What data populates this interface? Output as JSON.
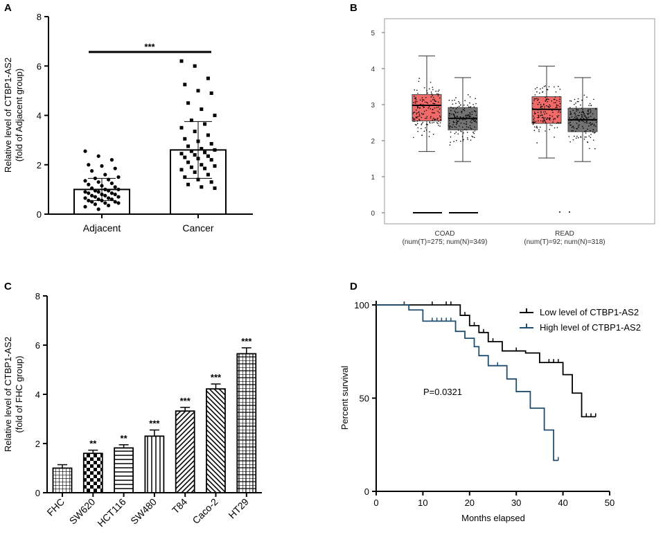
{
  "colors": {
    "tumor": "#f06a6a",
    "normal": "#737373",
    "low": "#000000",
    "high": "#1f4e6e"
  },
  "chart_data": [
    {
      "panel": "A",
      "type": "bar",
      "ylabel": [
        "Relative level of CTBP1-AS2",
        "(fold of  Adjacent group)"
      ],
      "ylim": [
        0,
        8
      ],
      "yticks": [
        0,
        2,
        4,
        6,
        8
      ],
      "categories": [
        "Adjacent",
        "Cancer"
      ],
      "values": [
        1.0,
        2.6
      ],
      "errors": [
        0.45,
        1.15
      ],
      "significance": "***",
      "points": [
        [
          2.55,
          2.35,
          2.2,
          2.0,
          1.95,
          1.85,
          1.75,
          1.6,
          1.5,
          1.45,
          1.4,
          1.35,
          1.3,
          1.25,
          1.2,
          1.15,
          1.1,
          1.05,
          1.0,
          1.0,
          0.95,
          0.95,
          0.9,
          0.9,
          0.85,
          0.85,
          0.8,
          0.8,
          0.75,
          0.75,
          0.7,
          0.7,
          0.65,
          0.65,
          0.6,
          0.6,
          0.55,
          0.55,
          0.5,
          0.5,
          0.45,
          0.45,
          0.4,
          0.35,
          0.3,
          0.2
        ],
        [
          6.2,
          6.0,
          5.5,
          5.25,
          5.0,
          4.9,
          4.5,
          4.25,
          4.0,
          3.8,
          3.65,
          3.5,
          3.35,
          3.2,
          3.05,
          2.95,
          2.85,
          2.75,
          2.65,
          2.6,
          2.55,
          2.5,
          2.45,
          2.4,
          2.35,
          2.3,
          2.25,
          2.2,
          2.1,
          2.0,
          1.95,
          1.9,
          1.85,
          1.8,
          1.7,
          1.6,
          1.5,
          1.4,
          1.3,
          1.2,
          1.1,
          1.05
        ]
      ]
    },
    {
      "panel": "B",
      "type": "box",
      "ylim": [
        0,
        5
      ],
      "yticks": [
        0,
        1,
        2,
        3,
        4,
        5
      ],
      "groups": [
        {
          "label": "COAD",
          "sublabel": "(num(T)=275; num(N)=349)",
          "tumor": {
            "min": 1.7,
            "q1": 2.55,
            "median": 2.98,
            "q3": 3.28,
            "max": 4.35
          },
          "normal": {
            "min": 1.42,
            "q1": 2.3,
            "median": 2.62,
            "q3": 2.92,
            "max": 3.75
          }
        },
        {
          "label": "READ",
          "sublabel": "(num(T)=92; num(N)=318)",
          "tumor": {
            "min": 1.52,
            "q1": 2.48,
            "median": 2.87,
            "q3": 3.22,
            "max": 4.07
          },
          "normal": {
            "min": 1.42,
            "q1": 2.25,
            "median": 2.58,
            "q3": 2.9,
            "max": 3.75
          }
        }
      ]
    },
    {
      "panel": "C",
      "type": "bar",
      "ylabel": [
        "Relative level of CTBP1-AS2",
        "(fold of  FHC group)"
      ],
      "ylim": [
        0,
        8
      ],
      "yticks": [
        0,
        2,
        4,
        6,
        8
      ],
      "categories": [
        "FHC",
        "SW620",
        "HCT116",
        "SW480",
        "T84",
        "Caco-2",
        "HT29"
      ],
      "values": [
        1.0,
        1.6,
        1.82,
        2.3,
        3.32,
        4.22,
        5.65
      ],
      "errors": [
        0.14,
        0.13,
        0.13,
        0.25,
        0.15,
        0.2,
        0.24
      ],
      "significance": [
        "",
        "**",
        "**",
        "***",
        "***",
        "***",
        "***"
      ]
    },
    {
      "panel": "D",
      "type": "line",
      "xlabel": "Months elapsed",
      "ylabel": "Percent survival",
      "xlim": [
        0,
        50
      ],
      "ylim": [
        0,
        100
      ],
      "xticks": [
        0,
        10,
        20,
        30,
        40,
        50
      ],
      "yticks": [
        0,
        50,
        100
      ],
      "annotation": "P=0.0321",
      "series": [
        {
          "name": "Low level of CTBP1-AS2",
          "x": [
            0,
            17,
            18,
            20,
            22,
            24,
            27,
            32,
            35,
            40,
            42,
            44,
            47
          ],
          "y": [
            100,
            100,
            94.4,
            88.9,
            85.2,
            80.3,
            75.3,
            74.2,
            69.1,
            62.6,
            52.7,
            40.0,
            40.0
          ],
          "censored": [
            [
              6,
              100
            ],
            [
              12,
              100
            ],
            [
              15,
              100
            ],
            [
              16,
              100
            ],
            [
              19,
              94.4
            ],
            [
              21,
              88.9
            ],
            [
              23,
              85.2
            ],
            [
              25,
              80.3
            ],
            [
              30,
              75.3
            ],
            [
              37,
              69.1
            ],
            [
              38,
              69.1
            ],
            [
              39,
              69.1
            ],
            [
              45,
              40
            ],
            [
              46,
              40
            ],
            [
              47,
              40
            ]
          ]
        },
        {
          "name": "High level of CTBP1-AS2",
          "x": [
            0,
            7,
            10,
            17,
            19,
            21,
            22,
            24,
            28,
            30,
            33,
            36,
            38,
            39
          ],
          "y": [
            100,
            97.3,
            91.3,
            85.8,
            82.1,
            77.6,
            72.8,
            67.4,
            60.3,
            53.5,
            44.6,
            32.9,
            16.6,
            16.6
          ],
          "censored": [
            [
              6,
              100
            ],
            [
              12,
              91.3
            ],
            [
              13,
              91.3
            ],
            [
              14,
              91.3
            ],
            [
              15,
              91.3
            ],
            [
              16,
              91.3
            ],
            [
              26,
              67.4
            ],
            [
              39,
              16.6
            ]
          ]
        }
      ]
    }
  ]
}
